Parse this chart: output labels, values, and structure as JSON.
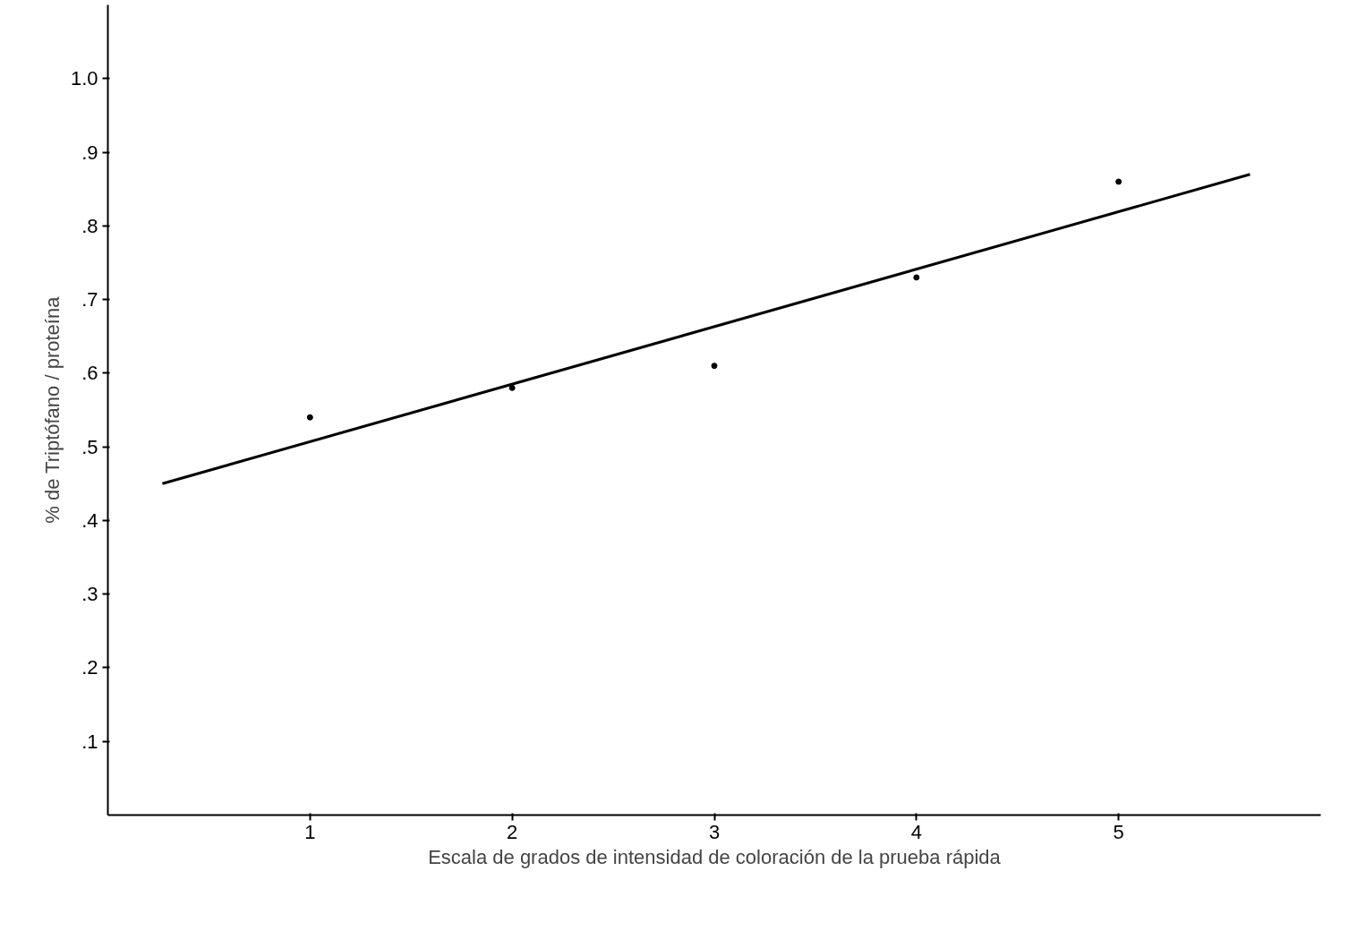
{
  "chart_data": {
    "type": "scatter",
    "xlabel": "Escala de grados de intensidad de coloración de la prueba rápida",
    "ylabel": "% de Triptófano / proteína",
    "xlim": [
      0,
      6
    ],
    "ylim": [
      0,
      1.1
    ],
    "xticks": [
      1,
      2,
      3,
      4,
      5
    ],
    "yticks": [
      {
        "value": 0.1,
        "label": ".1"
      },
      {
        "value": 0.2,
        "label": ".2"
      },
      {
        "value": 0.3,
        "label": ".3"
      },
      {
        "value": 0.4,
        "label": ".4"
      },
      {
        "value": 0.5,
        "label": ".5"
      },
      {
        "value": 0.6,
        "label": ".6"
      },
      {
        "value": 0.7,
        "label": ".7"
      },
      {
        "value": 0.8,
        "label": ".8"
      },
      {
        "value": 0.9,
        "label": ".9"
      },
      {
        "value": 1.0,
        "label": "1.0"
      }
    ],
    "grid": false,
    "series": [
      {
        "color": "#000000",
        "marker": "circle",
        "x": [
          1,
          2,
          3,
          4,
          5
        ],
        "values": [
          0.54,
          0.58,
          0.61,
          0.73,
          0.86
        ]
      },
      {
        "type": "line",
        "color": "#000000",
        "line_style": "solid",
        "x": [
          0.27,
          5.65
        ],
        "values": [
          0.45,
          0.87
        ]
      }
    ]
  }
}
